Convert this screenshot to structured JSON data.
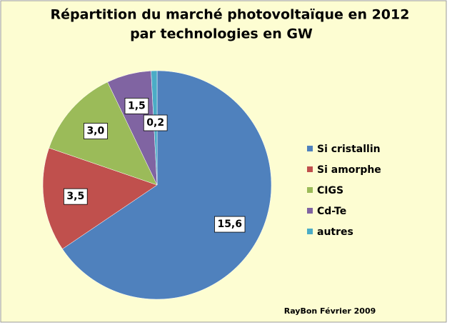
{
  "chart_data": {
    "type": "pie",
    "title": [
      "Répartition du marché photovoltaïque  en 2012",
      "par technologies en GW"
    ],
    "categories": [
      "Si cristallin",
      "Si amorphe",
      "CIGS",
      "Cd-Te",
      "autres"
    ],
    "values": [
      15.6,
      3.5,
      3.0,
      1.5,
      0.2
    ],
    "value_labels": [
      "15,6",
      "3,5",
      "3,0",
      "1,5",
      "0,2"
    ],
    "colors": [
      "#4f81bd",
      "#c0504d",
      "#9bbb59",
      "#8064a2",
      "#4bacc6"
    ],
    "legend": "right",
    "annotation": "RayBon Février 2009"
  }
}
